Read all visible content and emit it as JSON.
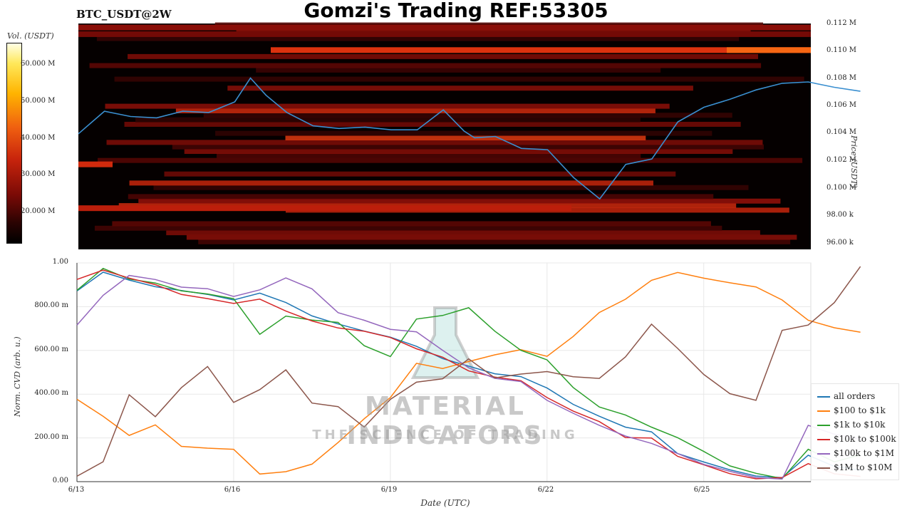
{
  "title": "Gomzi's Trading REF:53305",
  "symbol": "BTC_USDT@2W",
  "colors": {
    "all_orders": "#1f77b4",
    "100_to_1k": "#ff7f0e",
    "1k_to_10k": "#2ca02c",
    "10k_to_100k": "#d62728",
    "100k_to_1m": "#9467bd",
    "1m_to_10m": "#8c564b",
    "price_line": "#3a8fd0"
  },
  "watermark": {
    "line1": "MATERIAL INDICATORS",
    "line2": "THE SCIENCE OF TRADING"
  },
  "chart_data": [
    {
      "type": "heatmap",
      "colorbar": {
        "title": "Vol. (USDT)",
        "ticks": [
          "60.000 M",
          "50.000 M",
          "40.000 M",
          "30.000 M",
          "20.000 M"
        ]
      },
      "ylabel": "Price (USDT)",
      "yticks": [
        "0.112 M",
        "0.110 M",
        "0.108 M",
        "0.106 M",
        "0.104 M",
        "0.102 M",
        "0.100 M",
        "98.00 k",
        "96.00 k"
      ],
      "ylim": [
        95000,
        112000
      ],
      "price_series": {
        "x": [
          0,
          0.5,
          1,
          1.5,
          2,
          2.5,
          3,
          3.3,
          3.6,
          4,
          4.5,
          5,
          5.5,
          6,
          6.5,
          7,
          7.4,
          7.6,
          8,
          8.5,
          9,
          9.5,
          10,
          10.5,
          11,
          11.5,
          12,
          12.5,
          13,
          13.5,
          14,
          14.5,
          15
        ],
        "y": [
          103700,
          105400,
          105000,
          104900,
          105400,
          105300,
          106100,
          107900,
          106600,
          105300,
          104300,
          104100,
          104200,
          104000,
          104000,
          105500,
          103900,
          103400,
          103500,
          102600,
          102500,
          100400,
          98800,
          101400,
          101800,
          104600,
          105700,
          106300,
          107000,
          107500,
          107600,
          107200,
          106900
        ]
      }
    },
    {
      "type": "line",
      "xlabel": "Date (UTC)",
      "ylabel": "Norm. CVD (arb. u.)",
      "xticks": [
        "6/13",
        "6/16",
        "6/19",
        "6/22",
        "6/25"
      ],
      "yticks": [
        "1.00",
        "800.00 m",
        "600.00 m",
        "400.00 m",
        "200.00 m",
        "0.00"
      ],
      "ylim": [
        0,
        1
      ],
      "x_days": [
        0,
        0.5,
        1,
        1.5,
        2,
        2.5,
        3,
        3.5,
        4,
        4.5,
        5,
        5.5,
        6,
        6.5,
        7,
        7.5,
        8,
        8.5,
        9,
        9.5,
        10,
        10.5,
        11,
        11.5,
        12,
        12.5,
        13,
        13.5,
        14,
        14.5,
        15
      ],
      "series": [
        {
          "name": "all orders",
          "color_key": "all_orders",
          "values": [
            0.88,
            0.95,
            0.93,
            0.9,
            0.88,
            0.86,
            0.84,
            0.86,
            0.82,
            0.76,
            0.72,
            0.68,
            0.66,
            0.62,
            0.57,
            0.52,
            0.49,
            0.48,
            0.42,
            0.35,
            0.3,
            0.24,
            0.22,
            0.13,
            0.09,
            0.05,
            0.02,
            0.01,
            0.12,
            0.06,
            0.05
          ]
        },
        {
          "name": "$100 to $1k",
          "color_key": "100_to_1k",
          "values": [
            0.37,
            0.3,
            0.22,
            0.25,
            0.16,
            0.15,
            0.15,
            0.03,
            0.04,
            0.08,
            0.18,
            0.28,
            0.38,
            0.55,
            0.52,
            0.55,
            0.57,
            0.6,
            0.58,
            0.66,
            0.78,
            0.84,
            0.92,
            0.96,
            0.94,
            0.9,
            0.89,
            0.84,
            0.74,
            0.71,
            0.68
          ]
        },
        {
          "name": "$1k to $10k",
          "color_key": "1k_to_10k",
          "values": [
            0.88,
            0.97,
            0.93,
            0.9,
            0.87,
            0.86,
            0.83,
            0.68,
            0.76,
            0.74,
            0.72,
            0.62,
            0.58,
            0.75,
            0.76,
            0.8,
            0.69,
            0.6,
            0.56,
            0.44,
            0.35,
            0.3,
            0.25,
            0.2,
            0.13,
            0.08,
            0.04,
            0.02,
            0.15,
            0.1,
            0.13
          ]
        },
        {
          "name": "$10k to $100k",
          "color_key": "10k_to_100k",
          "values": [
            0.92,
            0.96,
            0.94,
            0.9,
            0.86,
            0.84,
            0.82,
            0.83,
            0.78,
            0.74,
            0.7,
            0.68,
            0.65,
            0.61,
            0.56,
            0.5,
            0.48,
            0.47,
            0.39,
            0.33,
            0.27,
            0.2,
            0.19,
            0.12,
            0.08,
            0.04,
            0.02,
            0.01,
            0.08,
            0.03,
            0.02
          ]
        },
        {
          "name": "$100k to $1M",
          "color_key": "100k_to_1m",
          "values": [
            0.72,
            0.85,
            0.95,
            0.92,
            0.88,
            0.88,
            0.85,
            0.88,
            0.93,
            0.88,
            0.78,
            0.74,
            0.69,
            0.68,
            0.6,
            0.52,
            0.47,
            0.46,
            0.38,
            0.32,
            0.26,
            0.2,
            0.17,
            0.12,
            0.08,
            0.04,
            0.02,
            0.02,
            0.25,
            0.22,
            0.2
          ]
        },
        {
          "name": "$1M to $10M",
          "color_key": "1m_to_10m",
          "values": [
            0.03,
            0.1,
            0.4,
            0.3,
            0.42,
            0.52,
            0.36,
            0.42,
            0.52,
            0.36,
            0.35,
            0.25,
            0.38,
            0.46,
            0.47,
            0.56,
            0.48,
            0.49,
            0.5,
            0.48,
            0.48,
            0.58,
            0.72,
            0.61,
            0.5,
            0.4,
            0.38,
            0.7,
            0.72,
            0.82,
            0.98
          ]
        }
      ]
    }
  ]
}
